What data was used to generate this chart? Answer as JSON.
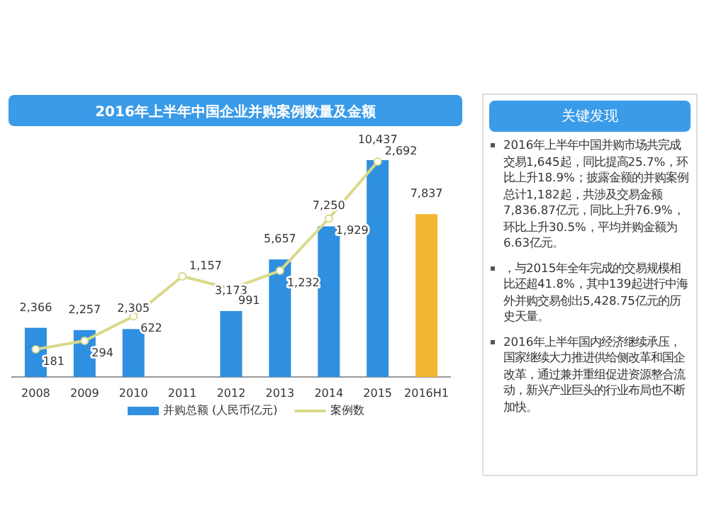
{
  "chart_data": [
    {
      "type": "bar",
      "title": "2016年上半年中国企业并购案例数量及金额",
      "categories": [
        "2008",
        "2009",
        "2010",
        "2011",
        "2012",
        "2013",
        "2014",
        "2015",
        "2016H1"
      ],
      "series": [
        {
          "name": "并购总额 (人民币亿元)",
          "color": "#2f8fe0",
          "colors": [
            "#2f8fe0",
            "#2f8fe0",
            "#2f8fe0",
            "#2f8fe0",
            "#2f8fe0",
            "#2f8fe0",
            "#2f8fe0",
            "#2f8fe0",
            "#f2b732"
          ],
          "values": [
            2366,
            2257,
            2305,
            null,
            3173,
            5657,
            7250,
            10437,
            7837
          ],
          "value_labels": [
            "2,366",
            "2,257",
            "2,305",
            null,
            "3,173",
            "5,657",
            "7,250",
            "10,437",
            "7,837"
          ]
        },
        {
          "name": "案例数",
          "type": "line",
          "axis": "y2",
          "color": "#d9d98a",
          "values": [
            181,
            294,
            622,
            1157,
            991,
            1232,
            1929,
            2692,
            null
          ],
          "value_labels": [
            "181",
            "294",
            "622",
            "1,157",
            "991",
            "1,232",
            "1,929",
            "2,692",
            null
          ]
        }
      ],
      "legend": "bottom",
      "marker": "circle"
    },
    {
      "type": "other",
      "title": "关键发现",
      "annotations": [
        "2016年上半年中国并购市场共完成交易1,645起，同比提高25.7%，环比上升18.9%；披露金额的并购案例总计1,182起，共涉及交易金额7,836.87亿元，同比上升76.9%，环比上升30.5%，平均并购金额为6.63亿元。",
        "，与2015年全年完成的交易规模相比还超41.8%，其中139起进行中海外并购交易创出5,428.75亿元的历史天量。",
        "2016年上半年国内经济继续承压，国家继续大力推进供给侧改革和国企改革，通过兼并重组促进资源整合流动，新兴产业巨头的行业布局也不断加快。"
      ]
    }
  ]
}
